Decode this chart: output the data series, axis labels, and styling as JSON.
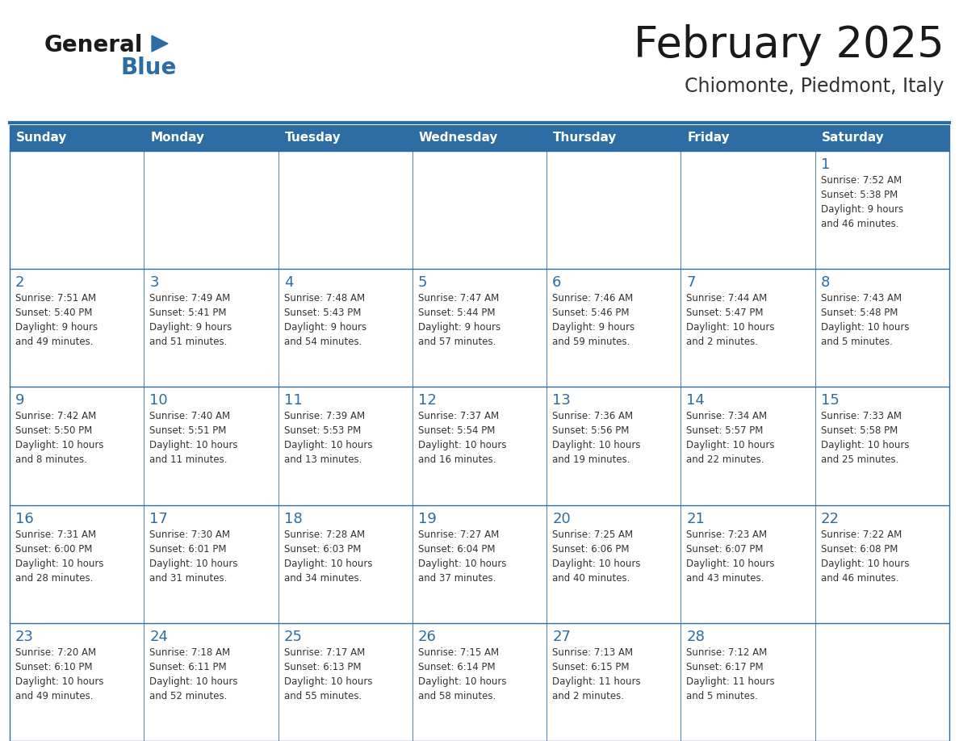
{
  "title": "February 2025",
  "subtitle": "Chiomonte, Piedmont, Italy",
  "header_bg": "#2E6DA4",
  "header_text": "#FFFFFF",
  "cell_bg": "#FFFFFF",
  "day_number_color": "#2E6DA4",
  "info_text_color": "#333333",
  "border_color": "#2E6DA4",
  "days_of_week": [
    "Sunday",
    "Monday",
    "Tuesday",
    "Wednesday",
    "Thursday",
    "Friday",
    "Saturday"
  ],
  "weeks": [
    [
      {
        "day": null,
        "info": null
      },
      {
        "day": null,
        "info": null
      },
      {
        "day": null,
        "info": null
      },
      {
        "day": null,
        "info": null
      },
      {
        "day": null,
        "info": null
      },
      {
        "day": null,
        "info": null
      },
      {
        "day": 1,
        "info": "Sunrise: 7:52 AM\nSunset: 5:38 PM\nDaylight: 9 hours\nand 46 minutes."
      }
    ],
    [
      {
        "day": 2,
        "info": "Sunrise: 7:51 AM\nSunset: 5:40 PM\nDaylight: 9 hours\nand 49 minutes."
      },
      {
        "day": 3,
        "info": "Sunrise: 7:49 AM\nSunset: 5:41 PM\nDaylight: 9 hours\nand 51 minutes."
      },
      {
        "day": 4,
        "info": "Sunrise: 7:48 AM\nSunset: 5:43 PM\nDaylight: 9 hours\nand 54 minutes."
      },
      {
        "day": 5,
        "info": "Sunrise: 7:47 AM\nSunset: 5:44 PM\nDaylight: 9 hours\nand 57 minutes."
      },
      {
        "day": 6,
        "info": "Sunrise: 7:46 AM\nSunset: 5:46 PM\nDaylight: 9 hours\nand 59 minutes."
      },
      {
        "day": 7,
        "info": "Sunrise: 7:44 AM\nSunset: 5:47 PM\nDaylight: 10 hours\nand 2 minutes."
      },
      {
        "day": 8,
        "info": "Sunrise: 7:43 AM\nSunset: 5:48 PM\nDaylight: 10 hours\nand 5 minutes."
      }
    ],
    [
      {
        "day": 9,
        "info": "Sunrise: 7:42 AM\nSunset: 5:50 PM\nDaylight: 10 hours\nand 8 minutes."
      },
      {
        "day": 10,
        "info": "Sunrise: 7:40 AM\nSunset: 5:51 PM\nDaylight: 10 hours\nand 11 minutes."
      },
      {
        "day": 11,
        "info": "Sunrise: 7:39 AM\nSunset: 5:53 PM\nDaylight: 10 hours\nand 13 minutes."
      },
      {
        "day": 12,
        "info": "Sunrise: 7:37 AM\nSunset: 5:54 PM\nDaylight: 10 hours\nand 16 minutes."
      },
      {
        "day": 13,
        "info": "Sunrise: 7:36 AM\nSunset: 5:56 PM\nDaylight: 10 hours\nand 19 minutes."
      },
      {
        "day": 14,
        "info": "Sunrise: 7:34 AM\nSunset: 5:57 PM\nDaylight: 10 hours\nand 22 minutes."
      },
      {
        "day": 15,
        "info": "Sunrise: 7:33 AM\nSunset: 5:58 PM\nDaylight: 10 hours\nand 25 minutes."
      }
    ],
    [
      {
        "day": 16,
        "info": "Sunrise: 7:31 AM\nSunset: 6:00 PM\nDaylight: 10 hours\nand 28 minutes."
      },
      {
        "day": 17,
        "info": "Sunrise: 7:30 AM\nSunset: 6:01 PM\nDaylight: 10 hours\nand 31 minutes."
      },
      {
        "day": 18,
        "info": "Sunrise: 7:28 AM\nSunset: 6:03 PM\nDaylight: 10 hours\nand 34 minutes."
      },
      {
        "day": 19,
        "info": "Sunrise: 7:27 AM\nSunset: 6:04 PM\nDaylight: 10 hours\nand 37 minutes."
      },
      {
        "day": 20,
        "info": "Sunrise: 7:25 AM\nSunset: 6:06 PM\nDaylight: 10 hours\nand 40 minutes."
      },
      {
        "day": 21,
        "info": "Sunrise: 7:23 AM\nSunset: 6:07 PM\nDaylight: 10 hours\nand 43 minutes."
      },
      {
        "day": 22,
        "info": "Sunrise: 7:22 AM\nSunset: 6:08 PM\nDaylight: 10 hours\nand 46 minutes."
      }
    ],
    [
      {
        "day": 23,
        "info": "Sunrise: 7:20 AM\nSunset: 6:10 PM\nDaylight: 10 hours\nand 49 minutes."
      },
      {
        "day": 24,
        "info": "Sunrise: 7:18 AM\nSunset: 6:11 PM\nDaylight: 10 hours\nand 52 minutes."
      },
      {
        "day": 25,
        "info": "Sunrise: 7:17 AM\nSunset: 6:13 PM\nDaylight: 10 hours\nand 55 minutes."
      },
      {
        "day": 26,
        "info": "Sunrise: 7:15 AM\nSunset: 6:14 PM\nDaylight: 10 hours\nand 58 minutes."
      },
      {
        "day": 27,
        "info": "Sunrise: 7:13 AM\nSunset: 6:15 PM\nDaylight: 11 hours\nand 2 minutes."
      },
      {
        "day": 28,
        "info": "Sunrise: 7:12 AM\nSunset: 6:17 PM\nDaylight: 11 hours\nand 5 minutes."
      },
      {
        "day": null,
        "info": null
      }
    ]
  ]
}
